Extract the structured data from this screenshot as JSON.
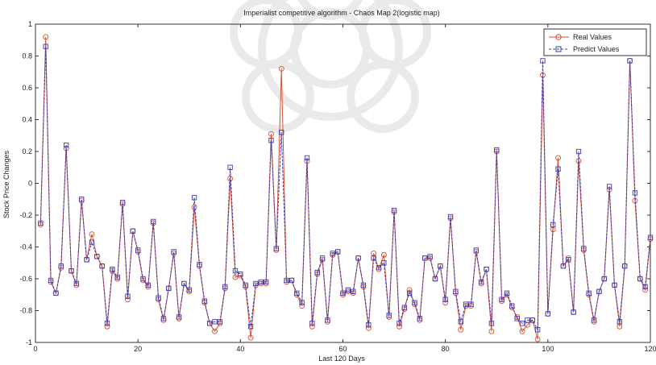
{
  "chart_data": {
    "type": "line",
    "title": "Imperialist competitive algorithm - Chaos Map 2(logistic map)",
    "xlabel": "Last 120 Days",
    "ylabel": "Stock Price Changes",
    "xlim": [
      0,
      120
    ],
    "ylim": [
      -1,
      1
    ],
    "xticks": [
      0,
      20,
      40,
      60,
      80,
      100,
      120
    ],
    "yticks": [
      -1,
      -0.8,
      -0.6,
      -0.4,
      -0.2,
      0,
      0.2,
      0.4,
      0.6,
      0.8,
      1
    ],
    "xtick_labels": [
      "0",
      "20",
      "40",
      "60",
      "80",
      "100",
      "120"
    ],
    "ytick_labels": [
      "-1",
      "-0.8",
      "-0.6",
      "-0.4",
      "-0.2",
      "0",
      "0.2",
      "0.4",
      "0.6",
      "0.8",
      "1"
    ],
    "grid": false,
    "legend_position": "top-right",
    "x": [
      1,
      2,
      3,
      4,
      5,
      6,
      7,
      8,
      9,
      10,
      11,
      12,
      13,
      14,
      15,
      16,
      17,
      18,
      19,
      20,
      21,
      22,
      23,
      24,
      25,
      26,
      27,
      28,
      29,
      30,
      31,
      32,
      33,
      34,
      35,
      36,
      37,
      38,
      39,
      40,
      41,
      42,
      43,
      44,
      45,
      46,
      47,
      48,
      49,
      50,
      51,
      52,
      53,
      54,
      55,
      56,
      57,
      58,
      59,
      60,
      61,
      62,
      63,
      64,
      65,
      66,
      67,
      68,
      69,
      70,
      71,
      72,
      73,
      74,
      75,
      76,
      77,
      78,
      79,
      80,
      81,
      82,
      83,
      84,
      85,
      86,
      87,
      88,
      89,
      90,
      91,
      92,
      93,
      94,
      95,
      96,
      97,
      98,
      99,
      100,
      101,
      102,
      103,
      104,
      105,
      106,
      107,
      108,
      109,
      110,
      111,
      112,
      113,
      114,
      115,
      116,
      117,
      118,
      119,
      120
    ],
    "series": [
      {
        "name": "Real Values",
        "color": "#d9502c",
        "marker": "circle",
        "values": [
          -0.26,
          0.92,
          -0.62,
          -0.69,
          -0.53,
          0.22,
          -0.55,
          -0.64,
          -0.11,
          -0.48,
          -0.32,
          -0.46,
          -0.52,
          -0.9,
          -0.55,
          -0.6,
          -0.13,
          -0.73,
          -0.3,
          -0.43,
          -0.61,
          -0.65,
          -0.25,
          -0.73,
          -0.86,
          -0.66,
          -0.44,
          -0.85,
          -0.63,
          -0.68,
          -0.15,
          -0.52,
          -0.75,
          -0.88,
          -0.93,
          -0.88,
          -0.66,
          0.03,
          -0.59,
          -0.58,
          -0.65,
          -0.97,
          -0.64,
          -0.63,
          -0.63,
          0.31,
          -0.42,
          0.72,
          -0.62,
          -0.61,
          -0.7,
          -0.77,
          0.14,
          -0.9,
          -0.57,
          -0.48,
          -0.87,
          -0.45,
          -0.43,
          -0.7,
          -0.68,
          -0.69,
          -0.47,
          -0.65,
          -0.91,
          -0.44,
          -0.54,
          -0.45,
          -0.84,
          -0.18,
          -0.9,
          -0.79,
          -0.67,
          -0.76,
          -0.86,
          -0.47,
          -0.47,
          -0.6,
          -0.52,
          -0.75,
          -0.22,
          -0.69,
          -0.92,
          -0.77,
          -0.77,
          -0.43,
          -0.63,
          -0.54,
          -0.93,
          0.2,
          -0.74,
          -0.7,
          -0.78,
          -0.84,
          -0.93,
          -0.89,
          -0.86,
          -0.98,
          0.68,
          -0.82,
          -0.29,
          0.16,
          -0.52,
          -0.47,
          -0.81,
          0.14,
          -0.42,
          -0.7,
          -0.87,
          -0.68,
          -0.6,
          -0.04,
          -0.64,
          -0.9,
          -0.52,
          0.77,
          -0.11,
          -0.6,
          -0.67,
          -0.35
        ]
      },
      {
        "name": "Predict Values",
        "color": "#3b3bb5",
        "marker": "square",
        "values": [
          -0.25,
          0.86,
          -0.61,
          -0.69,
          -0.52,
          0.24,
          -0.55,
          -0.63,
          -0.1,
          -0.48,
          -0.37,
          -0.46,
          -0.52,
          -0.88,
          -0.54,
          -0.59,
          -0.12,
          -0.71,
          -0.3,
          -0.42,
          -0.6,
          -0.64,
          -0.24,
          -0.72,
          -0.85,
          -0.66,
          -0.43,
          -0.84,
          -0.63,
          -0.67,
          -0.09,
          -0.51,
          -0.74,
          -0.88,
          -0.87,
          -0.87,
          -0.65,
          0.1,
          -0.55,
          -0.57,
          -0.64,
          -0.9,
          -0.63,
          -0.62,
          -0.62,
          0.27,
          -0.41,
          0.32,
          -0.61,
          -0.61,
          -0.69,
          -0.75,
          0.16,
          -0.88,
          -0.56,
          -0.47,
          -0.86,
          -0.44,
          -0.43,
          -0.69,
          -0.67,
          -0.68,
          -0.47,
          -0.64,
          -0.89,
          -0.47,
          -0.53,
          -0.5,
          -0.83,
          -0.17,
          -0.88,
          -0.78,
          -0.69,
          -0.75,
          -0.85,
          -0.47,
          -0.46,
          -0.6,
          -0.52,
          -0.73,
          -0.21,
          -0.68,
          -0.87,
          -0.76,
          -0.76,
          -0.42,
          -0.62,
          -0.54,
          -0.88,
          0.21,
          -0.73,
          -0.69,
          -0.77,
          -0.85,
          -0.88,
          -0.86,
          -0.86,
          -0.92,
          0.77,
          -0.82,
          -0.26,
          0.09,
          -0.52,
          -0.48,
          -0.81,
          0.2,
          -0.41,
          -0.69,
          -0.86,
          -0.68,
          -0.6,
          -0.02,
          -0.64,
          -0.87,
          -0.52,
          0.77,
          -0.06,
          -0.6,
          -0.65,
          -0.34
        ]
      }
    ]
  }
}
